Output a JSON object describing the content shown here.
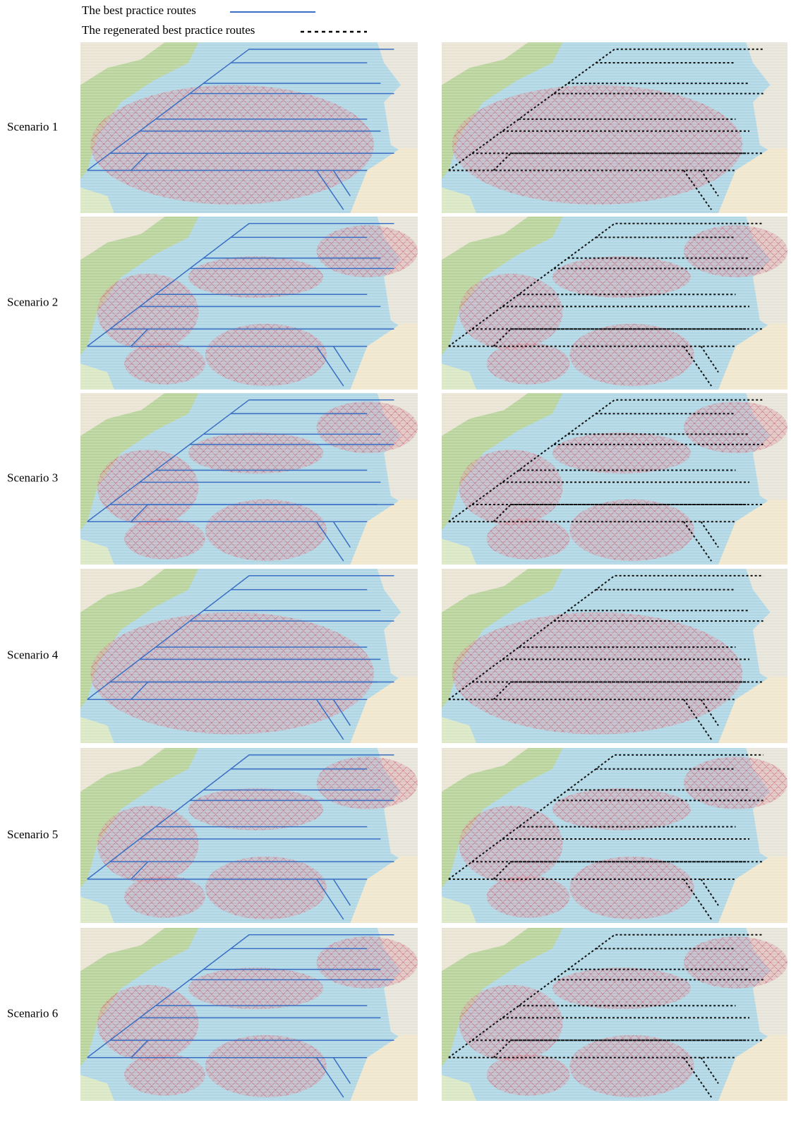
{
  "legend": {
    "items": [
      {
        "label": "The best practice routes"
      },
      {
        "label": "The regenerated best practice routes"
      }
    ]
  },
  "scenarios": [
    "Scenario 1",
    "Scenario 2",
    "Scenario 3",
    "Scenario 4",
    "Scenario 5",
    "Scenario 6"
  ]
}
